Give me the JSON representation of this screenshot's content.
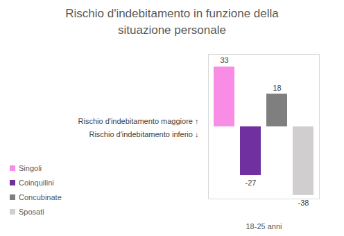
{
  "chart_data": {
    "type": "bar",
    "title": "Rischio d'indebitamento in funzione della situazione personale",
    "categories": [
      "18-25 anni"
    ],
    "series": [
      {
        "name": "Singoli",
        "color": "#f98ce4",
        "values": [
          33
        ]
      },
      {
        "name": "Coinquilini",
        "color": "#7030a0",
        "values": [
          -27
        ]
      },
      {
        "name": "Concubinate",
        "color": "#7f7f7f",
        "values": [
          18
        ]
      },
      {
        "name": "Sposati",
        "color": "#d0cece",
        "values": [
          -38
        ]
      }
    ],
    "annotations": [
      "Rischio d'indebitamento maggiore ↑",
      "Rischio d'indebitamento inferio ↓"
    ],
    "ylim": [
      -40,
      40
    ],
    "data_labels": true,
    "tick_labels": "x",
    "legend": "left"
  }
}
